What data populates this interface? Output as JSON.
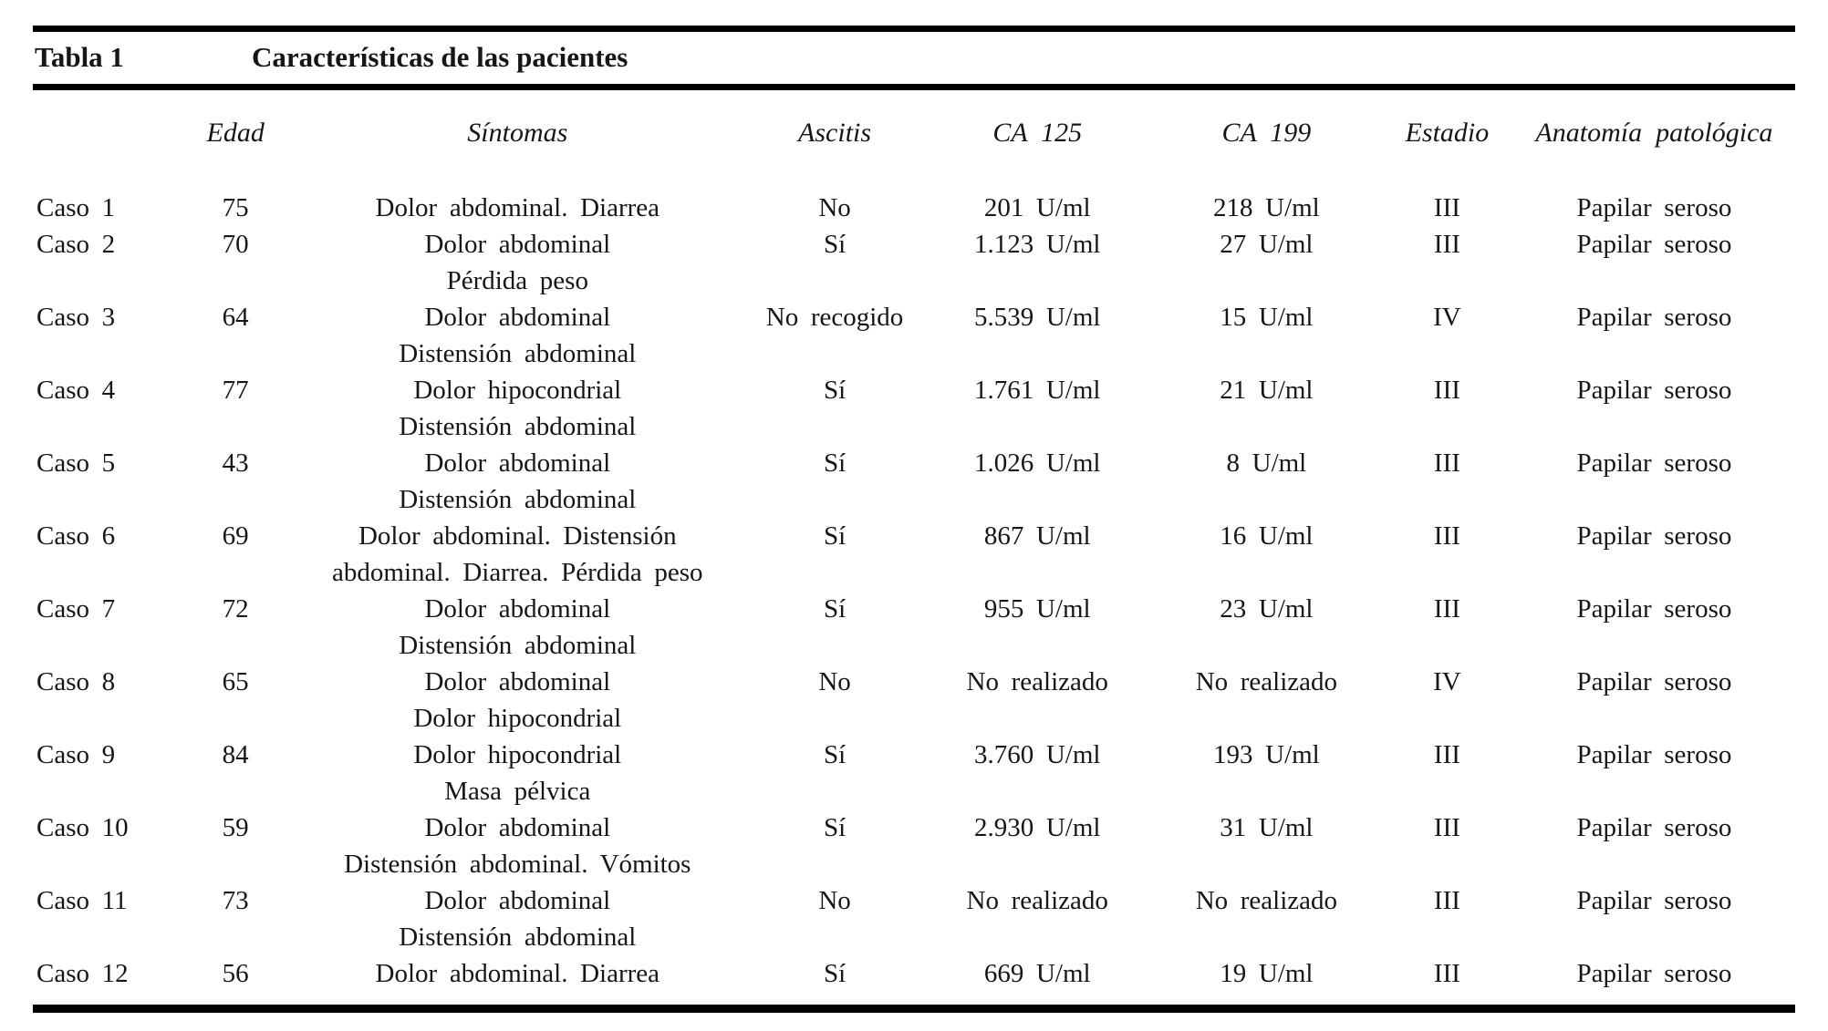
{
  "table": {
    "label": "Tabla 1",
    "title": "Características de las pacientes",
    "columns": [
      {
        "key": "caso",
        "label": ""
      },
      {
        "key": "edad",
        "label": "Edad"
      },
      {
        "key": "sintomas",
        "label": "Síntomas"
      },
      {
        "key": "ascitis",
        "label": "Ascitis"
      },
      {
        "key": "ca125",
        "label": "CA 125"
      },
      {
        "key": "ca199",
        "label": "CA 199"
      },
      {
        "key": "estadio",
        "label": "Estadio"
      },
      {
        "key": "anatomia",
        "label": "Anatomía patológica"
      }
    ],
    "rows": [
      {
        "caso": "Caso 1",
        "edad": "75",
        "sintomas": [
          "Dolor abdominal. Diarrea"
        ],
        "ascitis": "No",
        "ca125": "201 U/ml",
        "ca199": "218 U/ml",
        "estadio": "III",
        "anatomia": "Papilar seroso"
      },
      {
        "caso": "Caso 2",
        "edad": "70",
        "sintomas": [
          "Dolor abdominal",
          "Pérdida peso"
        ],
        "ascitis": "Sí",
        "ca125": "1.123 U/ml",
        "ca199": "27 U/ml",
        "estadio": "III",
        "anatomia": "Papilar seroso"
      },
      {
        "caso": "Caso 3",
        "edad": "64",
        "sintomas": [
          "Dolor abdominal",
          "Distensión abdominal"
        ],
        "ascitis": "No recogido",
        "ca125": "5.539 U/ml",
        "ca199": "15 U/ml",
        "estadio": "IV",
        "anatomia": "Papilar seroso"
      },
      {
        "caso": "Caso 4",
        "edad": "77",
        "sintomas": [
          "Dolor hipocondrial",
          "Distensión abdominal"
        ],
        "ascitis": "Sí",
        "ca125": "1.761 U/ml",
        "ca199": "21 U/ml",
        "estadio": "III",
        "anatomia": "Papilar seroso"
      },
      {
        "caso": "Caso 5",
        "edad": "43",
        "sintomas": [
          "Dolor abdominal",
          "Distensión abdominal"
        ],
        "ascitis": "Sí",
        "ca125": "1.026 U/ml",
        "ca199": "8 U/ml",
        "estadio": "III",
        "anatomia": "Papilar seroso"
      },
      {
        "caso": "Caso 6",
        "edad": "69",
        "sintomas": [
          "Dolor abdominal. Distensión",
          "abdominal. Diarrea. Pérdida peso"
        ],
        "ascitis": "Sí",
        "ca125": "867 U/ml",
        "ca199": "16 U/ml",
        "estadio": "III",
        "anatomia": "Papilar seroso"
      },
      {
        "caso": "Caso 7",
        "edad": "72",
        "sintomas": [
          "Dolor abdominal",
          "Distensión abdominal"
        ],
        "ascitis": "Sí",
        "ca125": "955 U/ml",
        "ca199": "23 U/ml",
        "estadio": "III",
        "anatomia": "Papilar seroso"
      },
      {
        "caso": "Caso 8",
        "edad": "65",
        "sintomas": [
          "Dolor abdominal",
          "Dolor hipocondrial"
        ],
        "ascitis": "No",
        "ca125": "No realizado",
        "ca199": "No realizado",
        "estadio": "IV",
        "anatomia": "Papilar seroso"
      },
      {
        "caso": "Caso 9",
        "edad": "84",
        "sintomas": [
          "Dolor hipocondrial",
          "Masa pélvica"
        ],
        "ascitis": "Sí",
        "ca125": "3.760 U/ml",
        "ca199": "193 U/ml",
        "estadio": "III",
        "anatomia": "Papilar seroso"
      },
      {
        "caso": "Caso 10",
        "edad": "59",
        "sintomas": [
          "Dolor abdominal",
          "Distensión abdominal. Vómitos"
        ],
        "ascitis": "Sí",
        "ca125": "2.930 U/ml",
        "ca199": "31 U/ml",
        "estadio": "III",
        "anatomia": "Papilar seroso"
      },
      {
        "caso": "Caso 11",
        "edad": "73",
        "sintomas": [
          "Dolor abdominal",
          "Distensión abdominal"
        ],
        "ascitis": "No",
        "ca125": "No realizado",
        "ca199": "No realizado",
        "estadio": "III",
        "anatomia": "Papilar seroso"
      },
      {
        "caso": "Caso 12",
        "edad": "56",
        "sintomas": [
          "Dolor abdominal. Diarrea"
        ],
        "ascitis": "Sí",
        "ca125": "669 U/ml",
        "ca199": "19 U/ml",
        "estadio": "III",
        "anatomia": "Papilar seroso"
      }
    ]
  },
  "colors": {
    "background": "#ffffff",
    "text": "#161616",
    "rule": "#000000"
  }
}
